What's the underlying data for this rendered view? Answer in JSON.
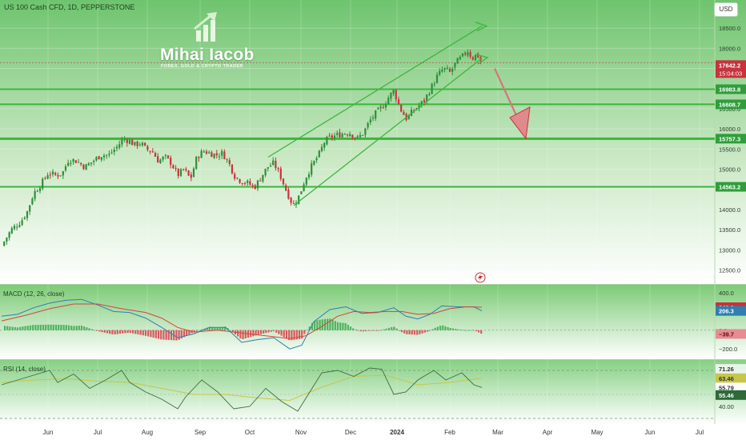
{
  "header": {
    "symbol_title": "US 100 Cash CFD, 1D, PEPPERSTONE",
    "currency_label": "USD"
  },
  "watermark": {
    "name": "Mihai Iacob",
    "tagline": "FOREX, GOLD & CRYPTO TRADER"
  },
  "colors": {
    "band": "#3db53d",
    "up": "#2c8f3a",
    "down": "#c8323c",
    "macd_line": "#2f7fb0",
    "signal_line": "#d8423e",
    "rsi_line": "#3d6e3d",
    "rsi_ma": "#c8c64a",
    "pane_top": "#6ec46e"
  },
  "icons": {
    "alert": "lightning-bolt-icon",
    "logo": "growth-arrow-bars-icon"
  },
  "chart_data": [
    {
      "type": "candlestick",
      "title": "US 100 Cash CFD, 1D, PEPPERSTONE",
      "ylim": [
        12200,
        19000
      ],
      "y_ticks": [
        12500,
        13000,
        13500,
        14000,
        14500,
        15000,
        15500,
        16000,
        16500,
        17000,
        17500,
        18000,
        18500
      ],
      "x_tick_labels": [
        "Jun",
        "Jul",
        "Aug",
        "Sep",
        "Oct",
        "Nov",
        "Dec",
        "2024",
        "Feb",
        "Mar",
        "Apr",
        "May",
        "Jun",
        "Jul"
      ],
      "last_price": 17642.2,
      "countdown": "15:04:03",
      "levels": [
        16983.8,
        16608.7,
        15757.3,
        14563.2
      ],
      "close_path": [
        [
          0,
          13100
        ],
        [
          12,
          13500
        ],
        [
          24,
          13700
        ],
        [
          32,
          13950
        ],
        [
          40,
          14400
        ],
        [
          50,
          14650
        ],
        [
          58,
          14900
        ],
        [
          68,
          14850
        ],
        [
          76,
          14900
        ],
        [
          84,
          15250
        ],
        [
          94,
          15200
        ],
        [
          104,
          15050
        ],
        [
          114,
          15200
        ],
        [
          124,
          15350
        ],
        [
          134,
          15350
        ],
        [
          144,
          15550
        ],
        [
          152,
          15750
        ],
        [
          160,
          15700
        ],
        [
          166,
          15600
        ],
        [
          174,
          15650
        ],
        [
          180,
          15500
        ],
        [
          188,
          15450
        ],
        [
          196,
          15200
        ],
        [
          204,
          15300
        ],
        [
          212,
          15150
        ],
        [
          220,
          14850
        ],
        [
          228,
          15000
        ],
        [
          236,
          14750
        ],
        [
          244,
          15300
        ],
        [
          252,
          15450
        ],
        [
          260,
          15400
        ],
        [
          268,
          15350
        ],
        [
          276,
          15400
        ],
        [
          284,
          15150
        ],
        [
          292,
          14800
        ],
        [
          300,
          14700
        ],
        [
          308,
          14650
        ],
        [
          316,
          14550
        ],
        [
          324,
          14800
        ],
        [
          332,
          15050
        ],
        [
          340,
          15150
        ],
        [
          348,
          14850
        ],
        [
          356,
          14450
        ],
        [
          364,
          14100
        ],
        [
          372,
          14350
        ],
        [
          380,
          14800
        ],
        [
          388,
          15100
        ],
        [
          396,
          15350
        ],
        [
          404,
          15700
        ],
        [
          412,
          15800
        ],
        [
          420,
          15850
        ],
        [
          428,
          15900
        ],
        [
          436,
          15900
        ],
        [
          444,
          15750
        ],
        [
          452,
          15900
        ],
        [
          460,
          16200
        ],
        [
          468,
          16400
        ],
        [
          476,
          16550
        ],
        [
          484,
          16800
        ],
        [
          490,
          16950
        ],
        [
          498,
          16500
        ],
        [
          506,
          16250
        ],
        [
          512,
          16400
        ],
        [
          520,
          16550
        ],
        [
          528,
          16700
        ],
        [
          536,
          17000
        ],
        [
          544,
          17300
        ],
        [
          552,
          17500
        ],
        [
          560,
          17400
        ],
        [
          568,
          17650
        ],
        [
          576,
          17800
        ],
        [
          582,
          17950
        ],
        [
          588,
          17750
        ],
        [
          594,
          17850
        ],
        [
          600,
          17642
        ]
      ]
    },
    {
      "type": "line",
      "title": "MACD (12, 26, close)",
      "ylim": [
        -250,
        400
      ],
      "y_ticks": [
        400,
        0,
        -200
      ],
      "series": [
        {
          "values": [
            [
              0,
              150
            ],
            [
              20,
              170
            ],
            [
              40,
              240
            ],
            [
              60,
              290
            ],
            [
              80,
              320
            ],
            [
              100,
              330
            ],
            [
              120,
              270
            ],
            [
              140,
              200
            ],
            [
              160,
              190
            ],
            [
              180,
              130
            ],
            [
              200,
              30
            ],
            [
              220,
              -80
            ],
            [
              240,
              -40
            ],
            [
              260,
              30
            ],
            [
              280,
              30
            ],
            [
              300,
              -130
            ],
            [
              320,
              -100
            ],
            [
              340,
              -80
            ],
            [
              360,
              -200
            ],
            [
              375,
              -160
            ],
            [
              390,
              90
            ],
            [
              410,
              220
            ],
            [
              430,
              250
            ],
            [
              450,
              180
            ],
            [
              470,
              190
            ],
            [
              490,
              240
            ],
            [
              505,
              150
            ],
            [
              520,
              120
            ],
            [
              535,
              170
            ],
            [
              550,
              260
            ],
            [
              570,
              250
            ],
            [
              590,
              250
            ],
            [
              600,
              206.3
            ]
          ]
        },
        {
          "values": [
            [
              0,
              100
            ],
            [
              30,
              160
            ],
            [
              60,
              230
            ],
            [
              90,
              280
            ],
            [
              120,
              280
            ],
            [
              150,
              230
            ],
            [
              180,
              190
            ],
            [
              200,
              130
            ],
            [
              220,
              30
            ],
            [
              240,
              -20
            ],
            [
              270,
              0
            ],
            [
              300,
              -30
            ],
            [
              330,
              -60
            ],
            [
              360,
              -90
            ],
            [
              380,
              -60
            ],
            [
              400,
              40
            ],
            [
              420,
              150
            ],
            [
              440,
              200
            ],
            [
              460,
              190
            ],
            [
              480,
              200
            ],
            [
              500,
              200
            ],
            [
              520,
              170
            ],
            [
              540,
              180
            ],
            [
              560,
              230
            ],
            [
              580,
              250
            ],
            [
              600,
              246.0
            ]
          ]
        }
      ],
      "value_labels": [
        246.0,
        206.3,
        -39.7
      ]
    },
    {
      "type": "line",
      "title": "RSI (14, close)",
      "ylim": [
        28,
        76
      ],
      "y_ticks": [
        71.26,
        63.46,
        55.79,
        55.46,
        40.0
      ],
      "series": [
        {
          "values": [
            [
              0,
              58
            ],
            [
              20,
              62
            ],
            [
              40,
              66
            ],
            [
              60,
              70
            ],
            [
              70,
              60
            ],
            [
              90,
              67
            ],
            [
              110,
              55
            ],
            [
              130,
              62
            ],
            [
              150,
              70
            ],
            [
              160,
              60
            ],
            [
              180,
              52
            ],
            [
              200,
              46
            ],
            [
              220,
              38
            ],
            [
              230,
              48
            ],
            [
              250,
              62
            ],
            [
              270,
              52
            ],
            [
              290,
              38
            ],
            [
              310,
              40
            ],
            [
              330,
              55
            ],
            [
              350,
              44
            ],
            [
              370,
              36
            ],
            [
              385,
              52
            ],
            [
              400,
              68
            ],
            [
              420,
              70
            ],
            [
              440,
              65
            ],
            [
              460,
              72
            ],
            [
              475,
              71
            ],
            [
              490,
              50
            ],
            [
              505,
              52
            ],
            [
              520,
              62
            ],
            [
              540,
              70
            ],
            [
              555,
              62
            ],
            [
              575,
              68
            ],
            [
              590,
              58
            ],
            [
              600,
              55.79
            ]
          ]
        },
        {
          "values": [
            [
              0,
              60
            ],
            [
              40,
              62
            ],
            [
              80,
              63
            ],
            [
              120,
              61
            ],
            [
              160,
              60
            ],
            [
              200,
              55
            ],
            [
              240,
              50
            ],
            [
              280,
              50
            ],
            [
              320,
              47
            ],
            [
              360,
              45
            ],
            [
              400,
              56
            ],
            [
              440,
              65
            ],
            [
              480,
              66
            ],
            [
              520,
              58
            ],
            [
              560,
              60
            ],
            [
              600,
              63.46
            ]
          ]
        }
      ],
      "value_labels": [
        71.26,
        63.46,
        55.79,
        55.46,
        40.0
      ]
    }
  ]
}
